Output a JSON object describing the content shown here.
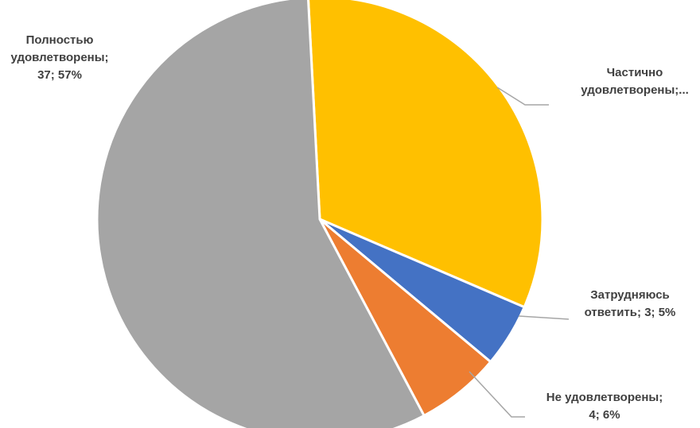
{
  "chart_data": {
    "type": "pie",
    "title": "",
    "start_angle_deg": -3,
    "direction": "clockwise",
    "slices": [
      {
        "category": "Частично удовлетворены",
        "value": 21,
        "percent": 32,
        "color": "#FFC000",
        "label_lines": [
          "Частично",
          "удовлетворены;..."
        ]
      },
      {
        "category": "Затрудняюсь ответить",
        "value": 3,
        "percent": 5,
        "color": "#4472C4",
        "label_lines": [
          "Затрудняюсь",
          "ответить; 3; 5%"
        ]
      },
      {
        "category": "Не удовлетворены",
        "value": 4,
        "percent": 6,
        "color": "#ED7D31",
        "label_lines": [
          "Не удовлетворены;",
          "4; 6%"
        ]
      },
      {
        "category": "Полностью удовлетворены",
        "value": 37,
        "percent": 57,
        "color": "#A5A5A5",
        "label_lines": [
          "Полностью",
          "удовлетворены;",
          "37; 57%"
        ]
      }
    ],
    "legend": "none",
    "label_color": "#404040",
    "leader_line_color": "#A6A6A6"
  }
}
